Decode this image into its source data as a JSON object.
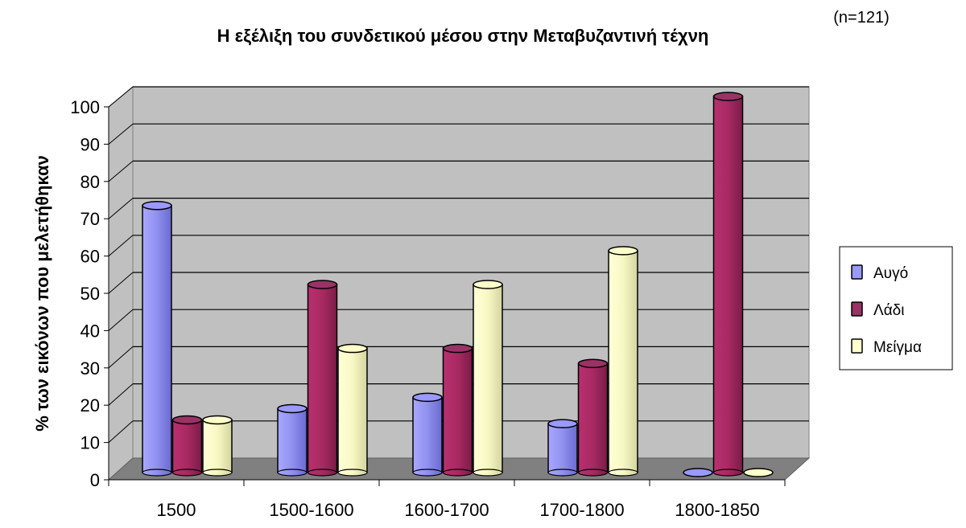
{
  "chart_data": {
    "type": "bar",
    "style": "3d-cylinder",
    "title": "Η εξέλιξη του συνδετικού μέσου στην Μεταβυζαντινή τέχνη",
    "subtitle": "(n=121)",
    "xlabel": "",
    "ylabel": "% των εικόνων που μελετήθηκαν",
    "ylim": [
      0,
      100
    ],
    "yticks": [
      "0",
      "10",
      "20",
      "30",
      "40",
      "50",
      "60",
      "70",
      "80",
      "90",
      "100"
    ],
    "grid": true,
    "legend_position": "right",
    "categories": [
      "1500",
      "1500-1600",
      "1600-1700",
      "1700-1800",
      "1800-1850"
    ],
    "series": [
      {
        "name": "Αυγό",
        "color": "#9999ff",
        "values": [
          71,
          17,
          20,
          13,
          0
        ]
      },
      {
        "name": "Λάδι",
        "color": "#993366",
        "values": [
          14,
          50,
          33,
          29,
          100
        ]
      },
      {
        "name": "Μείγμα",
        "color": "#ffffcc",
        "values": [
          14,
          33,
          50,
          59,
          0
        ]
      }
    ]
  }
}
